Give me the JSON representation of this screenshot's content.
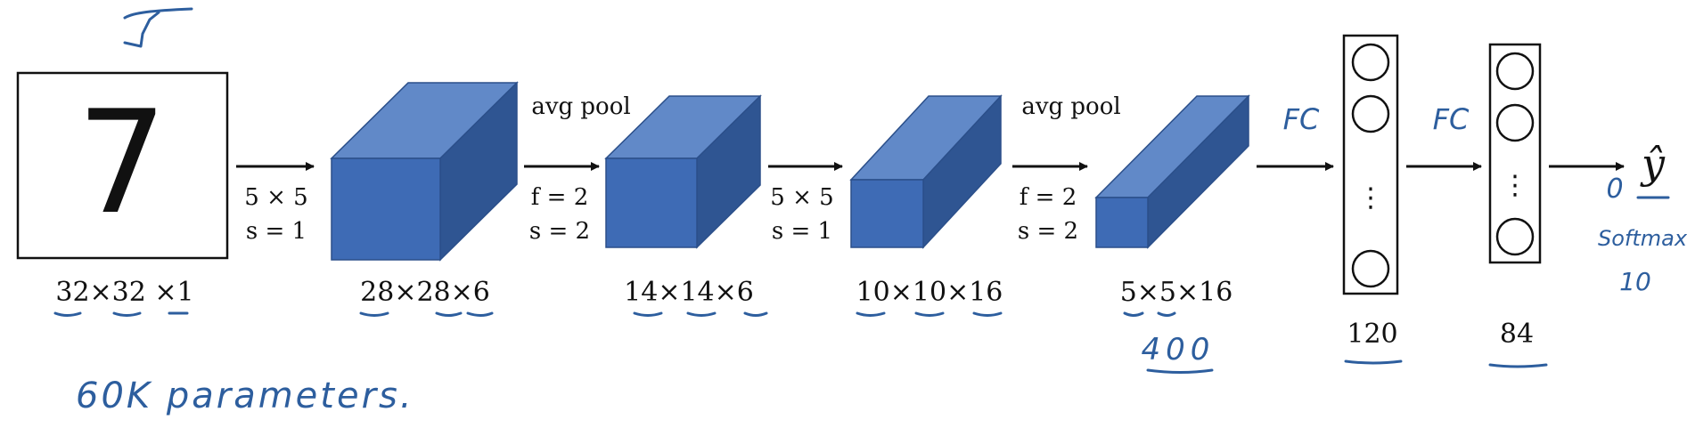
{
  "input": {
    "digit": "7",
    "dims": "32×32 ×1"
  },
  "layers": [
    {
      "dims": "28×28×6"
    },
    {
      "dims": "14×14×6"
    },
    {
      "dims": "10×10×16"
    },
    {
      "dims": "5×5×16"
    }
  ],
  "ops": [
    {
      "top": "",
      "line1": "5 × 5",
      "line2": "s = 1"
    },
    {
      "top": "avg pool",
      "line1": "f = 2",
      "line2": "s = 2"
    },
    {
      "top": "",
      "line1": "5 × 5",
      "line2": "s = 1"
    },
    {
      "top": "avg pool",
      "line1": "f = 2",
      "line2": "s = 2"
    }
  ],
  "fc": [
    {
      "size": "120",
      "ellipsis": "⋮"
    },
    {
      "size": "84",
      "ellipsis": "⋮"
    }
  ],
  "output": {
    "symbol": "ŷ"
  },
  "handwritten": {
    "flatten": "400",
    "fc1": "FC",
    "fc2": "FC",
    "params": "60K parameters.",
    "softmax": "Softmax",
    "softmax_n": "10",
    "zero": "0"
  },
  "colors": {
    "cube_front": "#3e6bb5",
    "cube_top": "#6189c8",
    "cube_side": "#2f5592",
    "cube_edge": "#2b4f8a",
    "ink": "#2d5e9e"
  }
}
